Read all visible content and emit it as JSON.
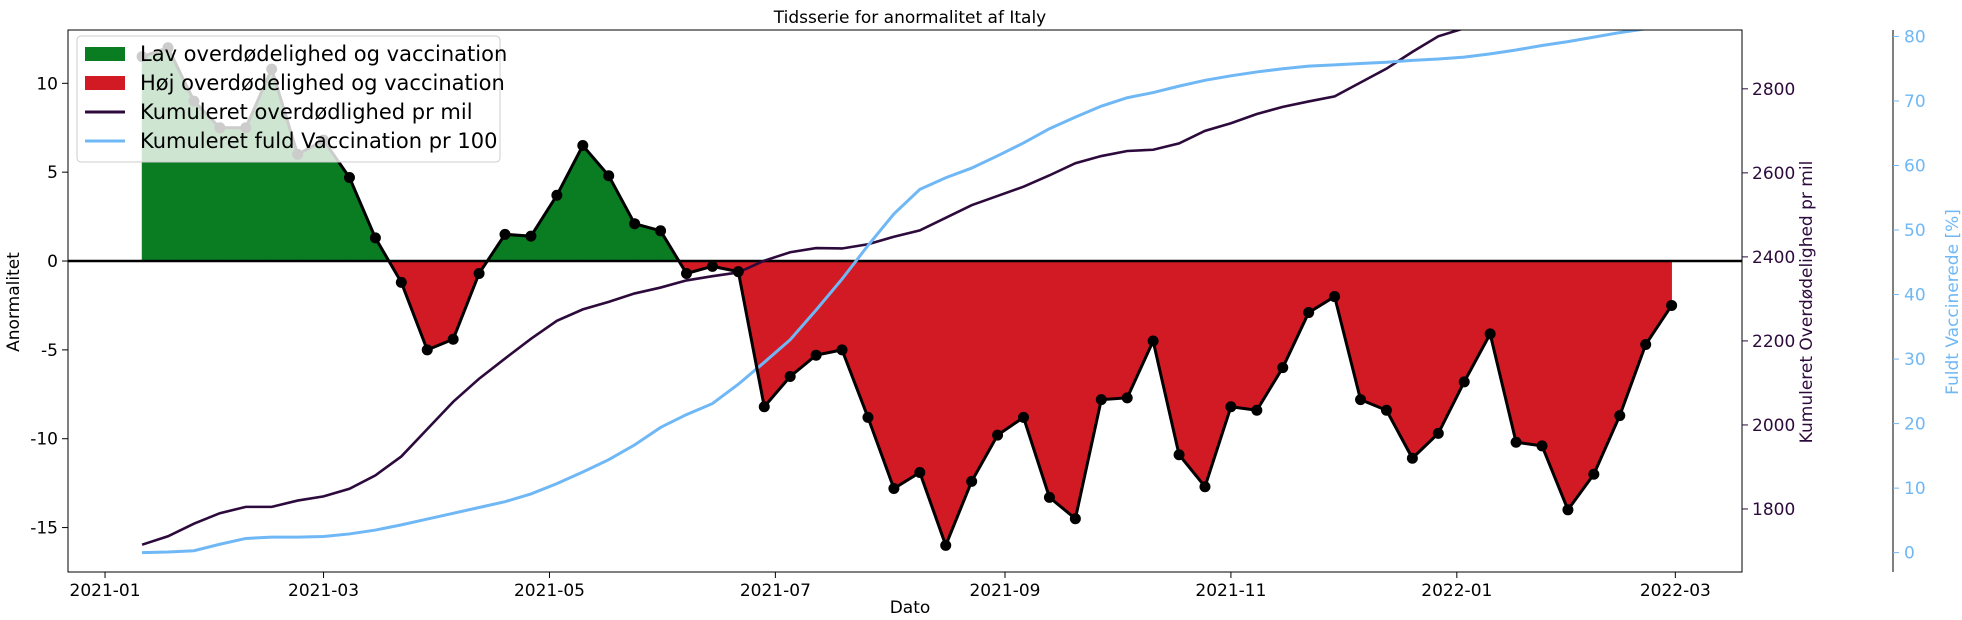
{
  "chart_data": {
    "type": "line",
    "title": "Tidsserie for anormalitet af Italy",
    "xlabel": "Dato",
    "ylabel_left": "Anormalitet",
    "ylabel_right1": "Kumuleret Overdødelighed pr mil",
    "ylabel_right2": "Fuldt Vaccinerede [%]",
    "x_ticks": [
      "2021-01",
      "2021-03",
      "2021-05",
      "2021-07",
      "2021-09",
      "2021-11",
      "2022-01",
      "2022-03"
    ],
    "x_range": [
      "2020-12-22",
      "2022-03-19"
    ],
    "left_axis": {
      "ylim": [
        -17.5,
        13
      ],
      "ticks": [
        -15,
        -10,
        -5,
        0,
        5,
        10
      ]
    },
    "right_axis1": {
      "ylim": [
        1650,
        2940
      ],
      "ticks": [
        1800,
        2000,
        2200,
        2400,
        2600,
        2800
      ],
      "color": "#2d0a3c"
    },
    "right_axis2": {
      "ylim": [
        -3,
        81
      ],
      "ticks": [
        0,
        10,
        20,
        30,
        40,
        50,
        60,
        70,
        80
      ],
      "color": "#6fb8f5"
    },
    "legend": {
      "position": "upper left",
      "entries": [
        {
          "label": "Lav overdødelighed og vaccination",
          "kind": "patch",
          "color": "#0a7d22"
        },
        {
          "label": "Høj overdødelighed og vaccination",
          "kind": "patch",
          "color": "#d11a24"
        },
        {
          "label": "Kumuleret overdødlighed pr mil",
          "kind": "line",
          "color": "#2d0a3c"
        },
        {
          "label": "Kumuleret fuld Vaccination pr 100",
          "kind": "line",
          "color": "#6fb8f5"
        }
      ]
    },
    "series": [
      {
        "name": "Anormalitet",
        "axis": "left",
        "color": "#000000",
        "x": [
          "2021-01-11",
          "2021-01-18",
          "2021-01-25",
          "2021-02-01",
          "2021-02-08",
          "2021-02-15",
          "2021-02-22",
          "2021-03-01",
          "2021-03-08",
          "2021-03-15",
          "2021-03-22",
          "2021-03-29",
          "2021-04-05",
          "2021-04-12",
          "2021-04-19",
          "2021-04-26",
          "2021-05-03",
          "2021-05-10",
          "2021-05-17",
          "2021-05-24",
          "2021-05-31",
          "2021-06-07",
          "2021-06-14",
          "2021-06-21",
          "2021-06-28",
          "2021-07-05",
          "2021-07-12",
          "2021-07-19",
          "2021-07-26",
          "2021-08-02",
          "2021-08-09",
          "2021-08-16",
          "2021-08-23",
          "2021-08-30",
          "2021-09-06",
          "2021-09-13",
          "2021-09-20",
          "2021-09-27",
          "2021-10-04",
          "2021-10-11",
          "2021-10-18",
          "2021-10-25",
          "2021-11-01",
          "2021-11-08",
          "2021-11-15",
          "2021-11-22",
          "2021-11-29",
          "2021-12-06",
          "2021-12-13",
          "2021-12-20",
          "2021-12-27",
          "2022-01-03",
          "2022-01-10",
          "2022-01-17",
          "2022-01-24",
          "2022-01-31",
          "2022-02-07",
          "2022-02-14",
          "2022-02-21",
          "2022-02-28"
        ],
        "values": [
          11.5,
          12.0,
          9.0,
          7.5,
          7.5,
          10.8,
          6.0,
          6.8,
          4.7,
          1.3,
          -1.2,
          -5.0,
          -4.4,
          -0.7,
          1.5,
          1.4,
          3.7,
          6.5,
          4.8,
          2.1,
          1.7,
          -0.7,
          -0.3,
          -0.6,
          -8.2,
          -6.5,
          -5.3,
          -5.0,
          -8.8,
          -12.8,
          -11.9,
          -16.0,
          -12.4,
          -9.8,
          -8.8,
          -13.3,
          -14.5,
          -7.8,
          -7.7,
          -4.5,
          -10.9,
          -12.7,
          -8.2,
          -8.4,
          -6.0,
          -2.9,
          -2.0,
          -7.8,
          -8.4,
          -11.1,
          -9.7,
          -6.8,
          -4.1,
          -10.2,
          -10.4,
          -14.0,
          -12.0,
          -8.7,
          -4.7,
          -2.5
        ]
      },
      {
        "name": "Kumuleret overdødlighed pr mil",
        "axis": "right1",
        "color": "#2d0a3c",
        "x": [
          "2021-01-11",
          "2021-01-18",
          "2021-01-25",
          "2021-02-01",
          "2021-02-08",
          "2021-02-15",
          "2021-02-22",
          "2021-03-01",
          "2021-03-08",
          "2021-03-15",
          "2021-03-22",
          "2021-03-29",
          "2021-04-05",
          "2021-04-12",
          "2021-04-19",
          "2021-04-26",
          "2021-05-03",
          "2021-05-10",
          "2021-05-17",
          "2021-05-24",
          "2021-05-31",
          "2021-06-07",
          "2021-06-14",
          "2021-06-21",
          "2021-06-28",
          "2021-07-05",
          "2021-07-12",
          "2021-07-19",
          "2021-07-26",
          "2021-08-02",
          "2021-08-09",
          "2021-08-16",
          "2021-08-23",
          "2021-08-30",
          "2021-09-06",
          "2021-09-13",
          "2021-09-20",
          "2021-09-27",
          "2021-10-04",
          "2021-10-11",
          "2021-10-18",
          "2021-10-25",
          "2021-11-01",
          "2021-11-08",
          "2021-11-15",
          "2021-11-22",
          "2021-11-29",
          "2021-12-06",
          "2021-12-13",
          "2021-12-20",
          "2021-12-27",
          "2022-01-03",
          "2022-01-10",
          "2022-01-17",
          "2022-01-24",
          "2022-01-31",
          "2022-02-07",
          "2022-02-14",
          "2022-02-21",
          "2022-02-28"
        ],
        "values": [
          1715,
          1735,
          1765,
          1790,
          1805,
          1805,
          1820,
          1830,
          1848,
          1880,
          1925,
          1990,
          2055,
          2110,
          2158,
          2205,
          2248,
          2275,
          2293,
          2313,
          2327,
          2344,
          2354,
          2363,
          2391,
          2411,
          2421,
          2420,
          2430,
          2448,
          2463,
          2493,
          2523,
          2545,
          2567,
          2594,
          2623,
          2640,
          2652,
          2655,
          2670,
          2700,
          2718,
          2740,
          2757,
          2770,
          2782,
          2815,
          2848,
          2888,
          2925,
          2944,
          2948,
          2965,
          2990,
          3035,
          3075,
          3098,
          3102,
          3096
        ]
      },
      {
        "name": "Kumuleret fuld Vaccination pr 100",
        "axis": "right2",
        "color": "#6fb8f5",
        "x": [
          "2021-01-11",
          "2021-01-18",
          "2021-01-25",
          "2021-02-01",
          "2021-02-08",
          "2021-02-15",
          "2021-02-22",
          "2021-03-01",
          "2021-03-08",
          "2021-03-15",
          "2021-03-22",
          "2021-03-29",
          "2021-04-05",
          "2021-04-12",
          "2021-04-19",
          "2021-04-26",
          "2021-05-03",
          "2021-05-10",
          "2021-05-17",
          "2021-05-24",
          "2021-05-31",
          "2021-06-07",
          "2021-06-14",
          "2021-06-21",
          "2021-06-28",
          "2021-07-05",
          "2021-07-12",
          "2021-07-19",
          "2021-07-26",
          "2021-08-02",
          "2021-08-09",
          "2021-08-16",
          "2021-08-23",
          "2021-08-30",
          "2021-09-06",
          "2021-09-13",
          "2021-09-20",
          "2021-09-27",
          "2021-10-04",
          "2021-10-11",
          "2021-10-18",
          "2021-10-25",
          "2021-11-01",
          "2021-11-08",
          "2021-11-15",
          "2021-11-22",
          "2021-11-29",
          "2021-12-06",
          "2021-12-13",
          "2021-12-20",
          "2021-12-27",
          "2022-01-03",
          "2022-01-10",
          "2022-01-17",
          "2022-01-24",
          "2022-01-31",
          "2022-02-07",
          "2022-02-14",
          "2022-02-21",
          "2022-02-28"
        ],
        "values": [
          0.0,
          0.1,
          0.3,
          1.3,
          2.2,
          2.4,
          2.4,
          2.5,
          2.9,
          3.5,
          4.3,
          5.2,
          6.1,
          7.0,
          7.9,
          9.1,
          10.7,
          12.5,
          14.4,
          16.7,
          19.4,
          21.4,
          23.1,
          26.1,
          29.5,
          33.0,
          37.6,
          42.4,
          47.6,
          52.5,
          56.3,
          58.1,
          59.6,
          61.5,
          63.5,
          65.7,
          67.5,
          69.2,
          70.5,
          71.3,
          72.3,
          73.2,
          73.9,
          74.5,
          75.0,
          75.4,
          75.6,
          75.8,
          76.0,
          76.3,
          76.5,
          76.8,
          77.3,
          77.9,
          78.6,
          79.2,
          79.9,
          80.6,
          81.2,
          81.6
        ]
      }
    ]
  }
}
